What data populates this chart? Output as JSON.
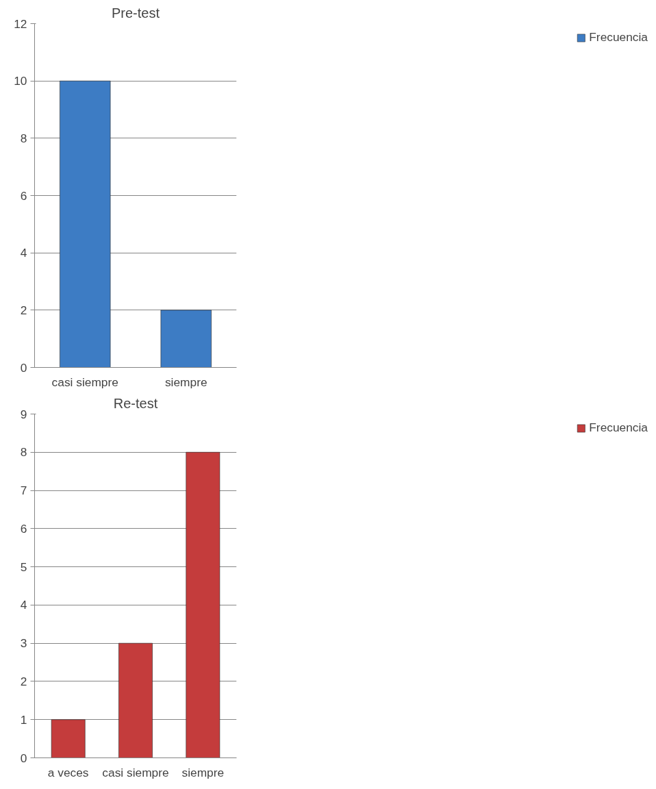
{
  "chart_data": [
    {
      "type": "bar",
      "title": "Pre-test",
      "categories": [
        "casi siempre",
        "siempre"
      ],
      "series": [
        {
          "name": "Frecuencia",
          "color": "#3d7cc4",
          "values": [
            10,
            2
          ]
        }
      ],
      "ylim": [
        0,
        12
      ],
      "yticks": [
        0,
        2,
        4,
        6,
        8,
        10,
        12
      ],
      "grid": "y",
      "legend": "right"
    },
    {
      "type": "bar",
      "title": "Re-test",
      "categories": [
        "a veces",
        "casi siempre",
        "siempre"
      ],
      "series": [
        {
          "name": "Frecuencia",
          "color": "#c43c3c",
          "values": [
            1,
            3,
            8
          ]
        }
      ],
      "ylim": [
        0,
        9
      ],
      "yticks": [
        0,
        1,
        2,
        3,
        4,
        5,
        6,
        7,
        8,
        9
      ],
      "grid": "y",
      "legend": "right"
    }
  ]
}
